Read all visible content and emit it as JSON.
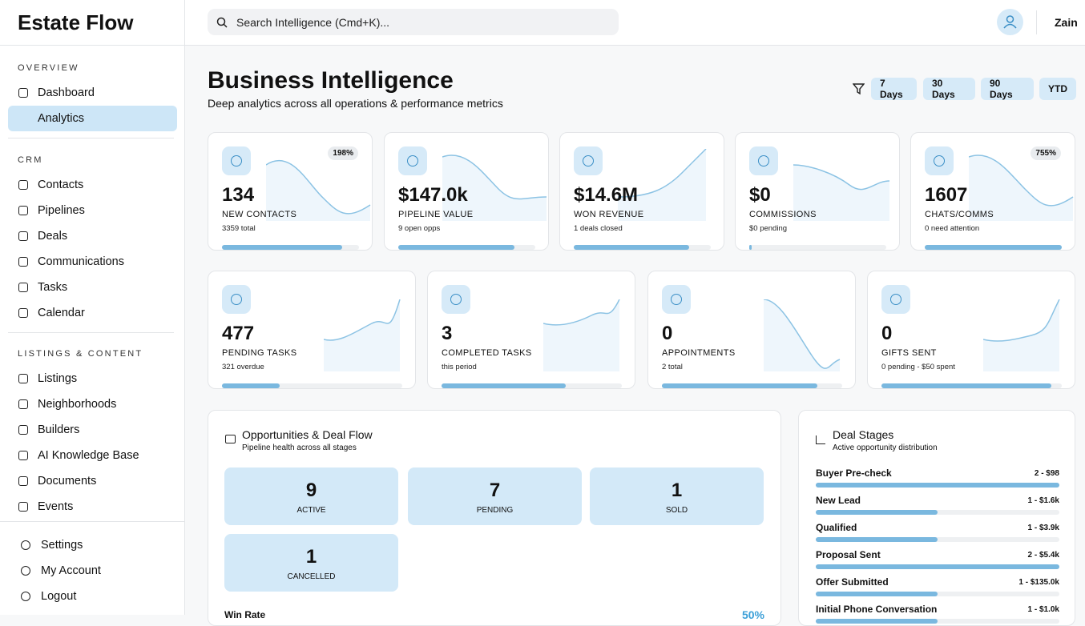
{
  "brand": "Estate Flow",
  "search": "Search Intelligence (Cmd+K)...",
  "user": "Zain",
  "sidebar": {
    "sections": [
      {
        "title": "OVERVIEW",
        "items": [
          "Dashboard",
          "Analytics"
        ]
      },
      {
        "title": "CRM",
        "items": [
          "Contacts",
          "Pipelines",
          "Deals",
          "Communications",
          "Tasks",
          "Calendar"
        ]
      },
      {
        "title": "LISTINGS & CONTENT",
        "items": [
          "Listings",
          "Neighborhoods",
          "Builders",
          "AI Knowledge Base",
          "Documents",
          "Events"
        ]
      }
    ],
    "bottom": [
      "Settings",
      "My Account",
      "Logout"
    ]
  },
  "header": {
    "title": "Business Intelligence",
    "subtitle": "Deep analytics across all operations & performance metrics",
    "filters": [
      "7 Days",
      "30 Days",
      "90 Days",
      "YTD"
    ]
  },
  "kpis_top": [
    {
      "value": "134",
      "label": "NEW CONTACTS",
      "sub": "3359 total",
      "badge": "198%",
      "progress": 88
    },
    {
      "value": "$147.0k",
      "label": "PIPELINE VALUE",
      "sub": "9 open opps",
      "progress": 85
    },
    {
      "value": "$14.6M",
      "label": "WON REVENUE",
      "sub": "1 deals closed",
      "progress": 84
    },
    {
      "value": "$0",
      "label": "COMMISSIONS",
      "sub": "$0 pending",
      "progress": 2
    },
    {
      "value": "1607",
      "label": "CHATS/COMMS",
      "sub": "0 need attention",
      "badge": "755%",
      "progress": 100
    }
  ],
  "kpis_mid": [
    {
      "value": "477",
      "label": "PENDING TASKS",
      "sub": "321 overdue",
      "progress": 32
    },
    {
      "value": "3",
      "label": "COMPLETED TASKS",
      "sub": "this period",
      "progress": 69
    },
    {
      "value": "0",
      "label": "APPOINTMENTS",
      "sub": "2 total",
      "progress": 86
    },
    {
      "value": "0",
      "label": "GIFTS SENT",
      "sub": "0 pending - $50 spent",
      "progress": 94
    }
  ],
  "deal_flow": {
    "title": "Opportunities & Deal Flow",
    "subtitle": "Pipeline health across all stages",
    "stats": [
      {
        "value": "9",
        "label": "ACTIVE"
      },
      {
        "value": "7",
        "label": "PENDING"
      },
      {
        "value": "1",
        "label": "SOLD"
      },
      {
        "value": "1",
        "label": "CANCELLED"
      }
    ],
    "win_rate_label": "Win Rate",
    "win_rate": "50%"
  },
  "deal_stages": {
    "title": "Deal Stages",
    "subtitle": "Active opportunity distribution",
    "stages": [
      {
        "name": "Buyer Pre-check",
        "info": "2 - $98",
        "progress": 100
      },
      {
        "name": "New Lead",
        "info": "1 - $1.6k",
        "progress": 50
      },
      {
        "name": "Qualified",
        "info": "1 - $3.9k",
        "progress": 50
      },
      {
        "name": "Proposal Sent",
        "info": "2 - $5.4k",
        "progress": 100
      },
      {
        "name": "Offer Submitted",
        "info": "1 - $135.0k",
        "progress": 50
      },
      {
        "name": "Initial Phone Conversation",
        "info": "1 - $1.0k",
        "progress": 50
      }
    ]
  }
}
